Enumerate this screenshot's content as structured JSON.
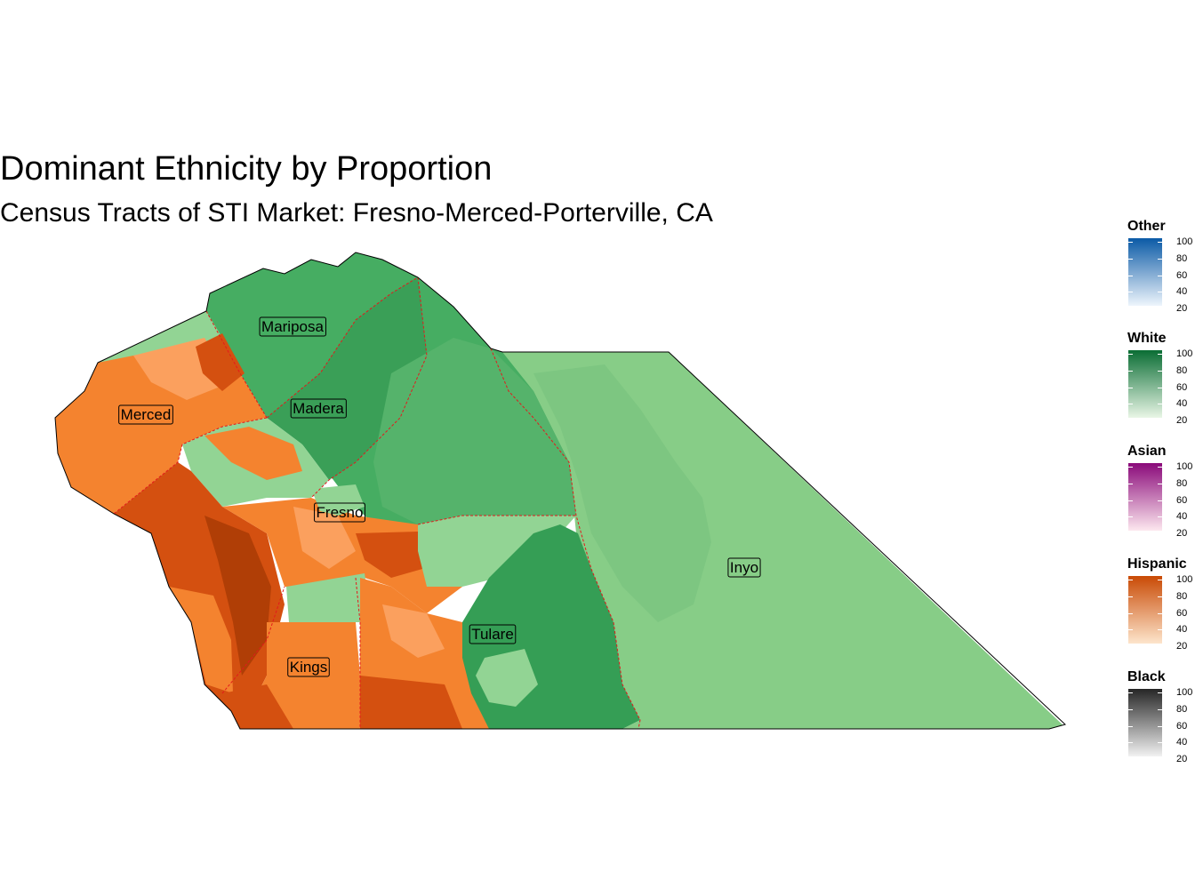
{
  "title": "Dominant Ethnicity by Proportion",
  "subtitle": "Census Tracts of STI Market: Fresno-Merced-Porterville, CA",
  "counties": [
    {
      "name": "Mariposa"
    },
    {
      "name": "Madera"
    },
    {
      "name": "Merced"
    },
    {
      "name": "Fresno"
    },
    {
      "name": "Inyo"
    },
    {
      "name": "Tulare"
    },
    {
      "name": "Kings"
    }
  ],
  "legends": [
    {
      "title": "Other",
      "low_color": "#eef5fc",
      "high_color": "#0b5aa6",
      "ticks": [
        "100",
        "80",
        "60",
        "40",
        "20"
      ]
    },
    {
      "title": "White",
      "low_color": "#e9f6e6",
      "high_color": "#0a6d34",
      "ticks": [
        "100",
        "80",
        "60",
        "40",
        "20"
      ]
    },
    {
      "title": "Asian",
      "low_color": "#fde8ef",
      "high_color": "#8a0a7a",
      "ticks": [
        "100",
        "80",
        "60",
        "40",
        "20"
      ]
    },
    {
      "title": "Hispanic",
      "low_color": "#fde5cc",
      "high_color": "#c94a05",
      "ticks": [
        "100",
        "80",
        "60",
        "40",
        "20"
      ]
    },
    {
      "title": "Black",
      "low_color": "#f2f2f2",
      "high_color": "#262626",
      "ticks": [
        "100",
        "80",
        "60",
        "40",
        "20"
      ]
    }
  ],
  "colors": {
    "white_light": "#92d494",
    "white_mid": "#52b06a",
    "white_dark": "#359e55",
    "hispanic_light": "#fba05e",
    "hispanic_mid": "#f4832f",
    "hispanic_dark": "#d45010",
    "hispanic_darkest": "#b03e06",
    "boundary": "#e31a1c"
  }
}
